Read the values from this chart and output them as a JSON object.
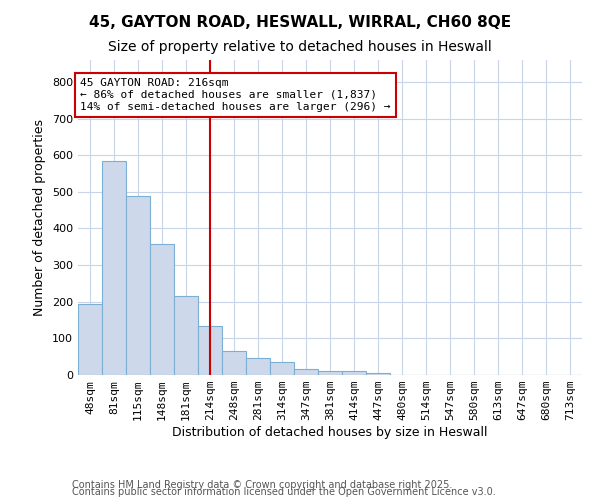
{
  "title_line1": "45, GAYTON ROAD, HESWALL, WIRRAL, CH60 8QE",
  "title_line2": "Size of property relative to detached houses in Heswall",
  "xlabel": "Distribution of detached houses by size in Heswall",
  "ylabel": "Number of detached properties",
  "categories": [
    "48sqm",
    "81sqm",
    "115sqm",
    "148sqm",
    "181sqm",
    "214sqm",
    "248sqm",
    "281sqm",
    "314sqm",
    "347sqm",
    "381sqm",
    "414sqm",
    "447sqm",
    "480sqm",
    "514sqm",
    "547sqm",
    "580sqm",
    "613sqm",
    "647sqm",
    "680sqm",
    "713sqm"
  ],
  "values": [
    195,
    585,
    490,
    358,
    215,
    133,
    65,
    47,
    36,
    17,
    11,
    12,
    5,
    0,
    0,
    0,
    0,
    0,
    0,
    0,
    0
  ],
  "bar_color": "#cdd9ea",
  "bar_edge_color": "#7bafd4",
  "vline_x": 5,
  "vline_color": "#cc0000",
  "annotation_text": "45 GAYTON ROAD: 216sqm\n← 86% of detached houses are smaller (1,837)\n14% of semi-detached houses are larger (296) →",
  "annotation_box_facecolor": "#ffffff",
  "annotation_box_edgecolor": "#cc0000",
  "ylim": [
    0,
    860
  ],
  "yticks": [
    0,
    100,
    200,
    300,
    400,
    500,
    600,
    700,
    800
  ],
  "footnote1": "Contains HM Land Registry data © Crown copyright and database right 2025.",
  "footnote2": "Contains public sector information licensed under the Open Government Licence v3.0.",
  "fig_facecolor": "#ffffff",
  "axes_facecolor": "#ffffff",
  "grid_color": "#c8d4e8",
  "title1_fontsize": 11,
  "title2_fontsize": 10,
  "axis_label_fontsize": 9,
  "tick_fontsize": 8,
  "footnote_fontsize": 7,
  "annotation_fontsize": 8
}
